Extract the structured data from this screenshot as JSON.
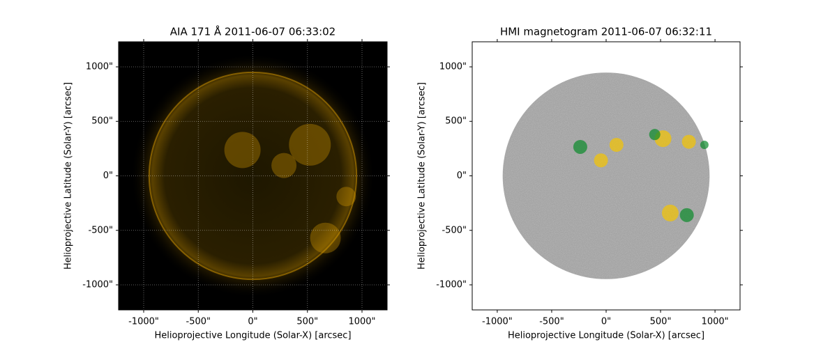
{
  "chart_data": [
    {
      "type": "image",
      "title": "AIA 171 Å 2011-06-07 06:33:02",
      "x_label": "Helioprojective Longitude (Solar-X) [arcsec]",
      "y_label": "Helioprojective Latitude (Solar-Y) [arcsec]",
      "xlim": [
        -1230,
        1230
      ],
      "ylim": [
        -1230,
        1230
      ],
      "xticks": [
        {
          "value": -1000,
          "label": "-1000\""
        },
        {
          "value": -500,
          "label": "-500\""
        },
        {
          "value": 0,
          "label": "0\""
        },
        {
          "value": 500,
          "label": "500\""
        },
        {
          "value": 1000,
          "label": "1000\""
        }
      ],
      "yticks": [
        {
          "value": -1000,
          "label": "-1000\""
        },
        {
          "value": -500,
          "label": "-500\""
        },
        {
          "value": 0,
          "label": "0\""
        },
        {
          "value": 500,
          "label": "500\""
        },
        {
          "value": 1000,
          "label": "1000\""
        }
      ],
      "grid": true,
      "color": "#d89a00"
    },
    {
      "type": "image",
      "title": "HMI magnetogram 2011-06-07 06:32:11",
      "x_label": "Helioprojective Longitude (Solar-X) [arcsec]",
      "y_label": "Helioprojective Latitude (Solar-Y) [arcsec]",
      "xlim": [
        -1230,
        1230
      ],
      "ylim": [
        -1230,
        1230
      ],
      "xticks": [
        {
          "value": -1000,
          "label": "-1000\""
        },
        {
          "value": -500,
          "label": "-500\""
        },
        {
          "value": 0,
          "label": "0\""
        },
        {
          "value": 500,
          "label": "500\""
        },
        {
          "value": 1000,
          "label": "1000\""
        }
      ],
      "yticks": [
        {
          "value": -1000,
          "label": "-1000\""
        },
        {
          "value": -500,
          "label": "-500\""
        },
        {
          "value": 0,
          "label": "0\""
        },
        {
          "value": 500,
          "label": "500\""
        },
        {
          "value": 1000,
          "label": "1000\""
        }
      ],
      "grid": false,
      "color": "#a4a4a4"
    }
  ]
}
